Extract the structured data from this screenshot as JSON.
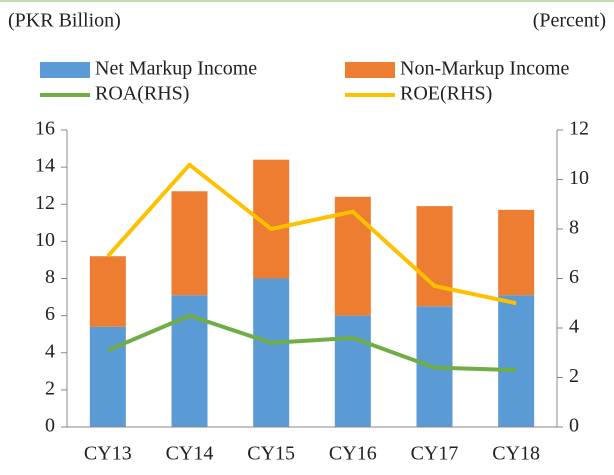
{
  "chart_data": {
    "type": "bar",
    "stacked": true,
    "y_label": "(PKR Billion)",
    "y2_label": "(Percent)",
    "categories": [
      "CY13",
      "CY14",
      "CY15",
      "CY16",
      "CY17",
      "CY18"
    ],
    "series": [
      {
        "name": "Net Markup Income",
        "type": "bar",
        "color": "#5b9bd5",
        "values": [
          5.4,
          7.1,
          8.0,
          6.0,
          6.5,
          7.1
        ]
      },
      {
        "name": "Non-Markup Income",
        "type": "bar",
        "color": "#ed7d31",
        "values": [
          3.8,
          5.6,
          6.4,
          6.4,
          5.4,
          4.6
        ]
      },
      {
        "name": "ROA(RHS)",
        "type": "line",
        "axis": "y2",
        "color": "#70ad47",
        "values": [
          3.1,
          4.5,
          3.4,
          3.6,
          2.4,
          2.3
        ]
      },
      {
        "name": "ROE(RHS)",
        "type": "line",
        "axis": "y2",
        "color": "#ffc000",
        "values": [
          6.9,
          10.6,
          8.0,
          8.7,
          5.7,
          5.0
        ]
      }
    ],
    "ylim": [
      0,
      16
    ],
    "yticks": [
      0,
      2,
      4,
      6,
      8,
      10,
      12,
      14,
      16
    ],
    "y2lim": [
      0,
      12
    ],
    "y2ticks": [
      0,
      2,
      4,
      6,
      8,
      10,
      12
    ],
    "grid": false
  }
}
